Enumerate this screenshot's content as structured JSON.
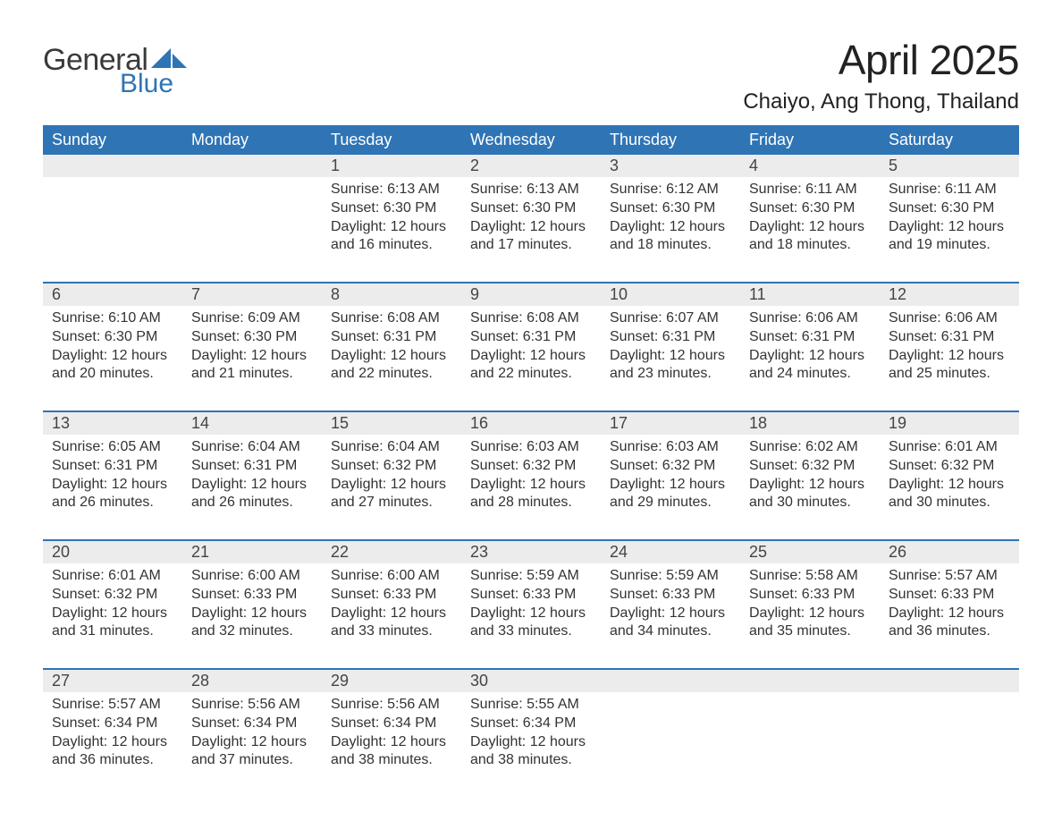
{
  "brand": {
    "text_general": "General",
    "text_blue": "Blue",
    "sail_color": "#2f74b5",
    "general_color": "#3a3a3a"
  },
  "title": "April 2025",
  "location": "Chaiyo, Ang Thong, Thailand",
  "colors": {
    "header_bg": "#2f74b5",
    "header_text": "#ffffff",
    "daynum_bg": "#ececec",
    "row_border": "#2f74b5",
    "text": "#333333",
    "page_bg": "#ffffff"
  },
  "typography": {
    "title_fontsize": 46,
    "location_fontsize": 24,
    "header_fontsize": 18,
    "daynum_fontsize": 18,
    "detail_fontsize": 16
  },
  "weekdays": [
    "Sunday",
    "Monday",
    "Tuesday",
    "Wednesday",
    "Thursday",
    "Friday",
    "Saturday"
  ],
  "labels": {
    "sunrise": "Sunrise",
    "sunset": "Sunset",
    "daylight": "Daylight"
  },
  "weeks": [
    [
      null,
      null,
      {
        "day": 1,
        "sunrise": "6:13 AM",
        "sunset": "6:30 PM",
        "daylight": "12 hours and 16 minutes."
      },
      {
        "day": 2,
        "sunrise": "6:13 AM",
        "sunset": "6:30 PM",
        "daylight": "12 hours and 17 minutes."
      },
      {
        "day": 3,
        "sunrise": "6:12 AM",
        "sunset": "6:30 PM",
        "daylight": "12 hours and 18 minutes."
      },
      {
        "day": 4,
        "sunrise": "6:11 AM",
        "sunset": "6:30 PM",
        "daylight": "12 hours and 18 minutes."
      },
      {
        "day": 5,
        "sunrise": "6:11 AM",
        "sunset": "6:30 PM",
        "daylight": "12 hours and 19 minutes."
      }
    ],
    [
      {
        "day": 6,
        "sunrise": "6:10 AM",
        "sunset": "6:30 PM",
        "daylight": "12 hours and 20 minutes."
      },
      {
        "day": 7,
        "sunrise": "6:09 AM",
        "sunset": "6:30 PM",
        "daylight": "12 hours and 21 minutes."
      },
      {
        "day": 8,
        "sunrise": "6:08 AM",
        "sunset": "6:31 PM",
        "daylight": "12 hours and 22 minutes."
      },
      {
        "day": 9,
        "sunrise": "6:08 AM",
        "sunset": "6:31 PM",
        "daylight": "12 hours and 22 minutes."
      },
      {
        "day": 10,
        "sunrise": "6:07 AM",
        "sunset": "6:31 PM",
        "daylight": "12 hours and 23 minutes."
      },
      {
        "day": 11,
        "sunrise": "6:06 AM",
        "sunset": "6:31 PM",
        "daylight": "12 hours and 24 minutes."
      },
      {
        "day": 12,
        "sunrise": "6:06 AM",
        "sunset": "6:31 PM",
        "daylight": "12 hours and 25 minutes."
      }
    ],
    [
      {
        "day": 13,
        "sunrise": "6:05 AM",
        "sunset": "6:31 PM",
        "daylight": "12 hours and 26 minutes."
      },
      {
        "day": 14,
        "sunrise": "6:04 AM",
        "sunset": "6:31 PM",
        "daylight": "12 hours and 26 minutes."
      },
      {
        "day": 15,
        "sunrise": "6:04 AM",
        "sunset": "6:32 PM",
        "daylight": "12 hours and 27 minutes."
      },
      {
        "day": 16,
        "sunrise": "6:03 AM",
        "sunset": "6:32 PM",
        "daylight": "12 hours and 28 minutes."
      },
      {
        "day": 17,
        "sunrise": "6:03 AM",
        "sunset": "6:32 PM",
        "daylight": "12 hours and 29 minutes."
      },
      {
        "day": 18,
        "sunrise": "6:02 AM",
        "sunset": "6:32 PM",
        "daylight": "12 hours and 30 minutes."
      },
      {
        "day": 19,
        "sunrise": "6:01 AM",
        "sunset": "6:32 PM",
        "daylight": "12 hours and 30 minutes."
      }
    ],
    [
      {
        "day": 20,
        "sunrise": "6:01 AM",
        "sunset": "6:32 PM",
        "daylight": "12 hours and 31 minutes."
      },
      {
        "day": 21,
        "sunrise": "6:00 AM",
        "sunset": "6:33 PM",
        "daylight": "12 hours and 32 minutes."
      },
      {
        "day": 22,
        "sunrise": "6:00 AM",
        "sunset": "6:33 PM",
        "daylight": "12 hours and 33 minutes."
      },
      {
        "day": 23,
        "sunrise": "5:59 AM",
        "sunset": "6:33 PM",
        "daylight": "12 hours and 33 minutes."
      },
      {
        "day": 24,
        "sunrise": "5:59 AM",
        "sunset": "6:33 PM",
        "daylight": "12 hours and 34 minutes."
      },
      {
        "day": 25,
        "sunrise": "5:58 AM",
        "sunset": "6:33 PM",
        "daylight": "12 hours and 35 minutes."
      },
      {
        "day": 26,
        "sunrise": "5:57 AM",
        "sunset": "6:33 PM",
        "daylight": "12 hours and 36 minutes."
      }
    ],
    [
      {
        "day": 27,
        "sunrise": "5:57 AM",
        "sunset": "6:34 PM",
        "daylight": "12 hours and 36 minutes."
      },
      {
        "day": 28,
        "sunrise": "5:56 AM",
        "sunset": "6:34 PM",
        "daylight": "12 hours and 37 minutes."
      },
      {
        "day": 29,
        "sunrise": "5:56 AM",
        "sunset": "6:34 PM",
        "daylight": "12 hours and 38 minutes."
      },
      {
        "day": 30,
        "sunrise": "5:55 AM",
        "sunset": "6:34 PM",
        "daylight": "12 hours and 38 minutes."
      },
      null,
      null,
      null
    ]
  ]
}
